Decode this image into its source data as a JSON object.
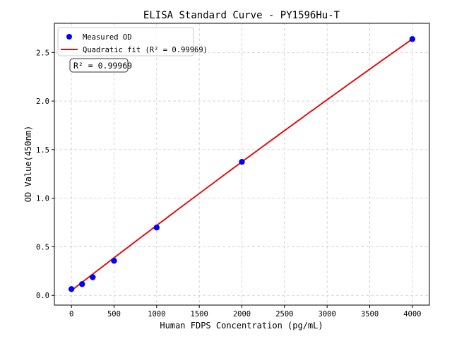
{
  "chart_data": {
    "type": "scatter",
    "title": "ELISA Standard Curve - PY1596Hu-T",
    "xlabel": "Human FDPS Concentration (pg/mL)",
    "ylabel": "OD Value(450nm)",
    "xlim": [
      -200,
      4200
    ],
    "ylim": [
      -0.1,
      2.8
    ],
    "xticks": [
      0,
      500,
      1000,
      1500,
      2000,
      2500,
      3000,
      3500,
      4000
    ],
    "yticks": [
      0.0,
      0.5,
      1.0,
      1.5,
      2.0,
      2.5
    ],
    "ytick_labels": [
      "0.0",
      "0.5",
      "1.0",
      "1.5",
      "2.0",
      "2.5"
    ],
    "grid": true,
    "legend_placement": "top-left",
    "series": [
      {
        "name": "Measured OD",
        "kind": "points",
        "color": "#0000ff",
        "x": [
          0,
          125,
          250,
          500,
          1000,
          2000,
          4000
        ],
        "y": [
          0.065,
          0.116,
          0.187,
          0.356,
          0.698,
          1.374,
          2.638
        ]
      },
      {
        "name": "Quadratic fit (R² = 0.99969)",
        "kind": "line",
        "color": "#dd1111",
        "coefficients": {
          "a": -7.5e-09,
          "b": 0.000677,
          "c": 0.05
        }
      }
    ],
    "annotation": "R² = 0.99969"
  }
}
